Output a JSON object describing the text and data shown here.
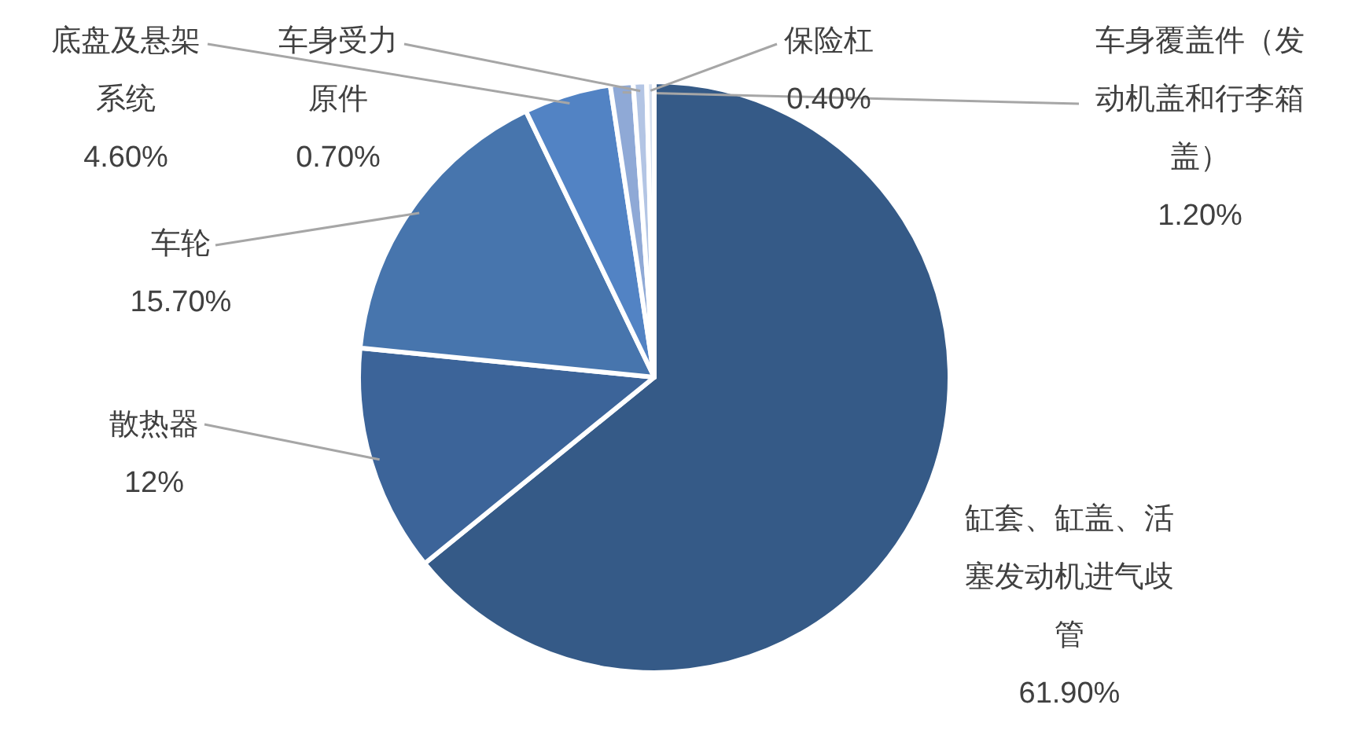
{
  "chart_data": {
    "type": "pie",
    "categories": [
      "缸套、缸盖、活塞发动机进气歧管",
      "散热器",
      "车轮",
      "底盘及悬架系统",
      "车身覆盖件（发动机盖和行李箱盖）",
      "车身受力原件",
      "保险杠"
    ],
    "values": [
      61.9,
      12,
      15.7,
      4.6,
      1.2,
      0.7,
      0.4
    ],
    "value_labels": [
      "61.90%",
      "12%",
      "15.70%",
      "4.60%",
      "1.20%",
      "0.70%",
      "0.40%"
    ],
    "colors": [
      "#355a87",
      "#3c6499",
      "#4775ad",
      "#5283c4",
      "#8fa9d6",
      "#b3c5e4",
      "#d6e0f0"
    ]
  }
}
